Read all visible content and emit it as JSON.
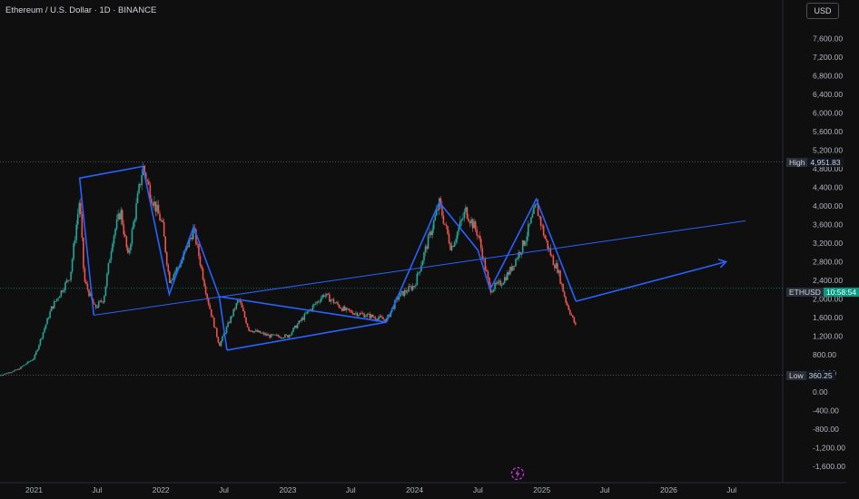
{
  "symbol_title": "Ethereum / U.S. Dollar · 1D · BINANCE",
  "currency_label": "USD",
  "high": {
    "label": "High",
    "value": "4,951.83"
  },
  "low": {
    "label": "Low",
    "value": "360.25"
  },
  "last": {
    "label": "ETHUSD",
    "value": "10:58:54"
  },
  "colors": {
    "background": "#0f0f0f",
    "up": "#26a69a",
    "down": "#ef5350",
    "drawing": "#2962ff",
    "price_tag": "#089981"
  },
  "chart_data": {
    "type": "line",
    "title": "Ethereum / U.S. Dollar · 1D · BINANCE",
    "x_tick_labels": [
      "2021",
      "Jul",
      "2022",
      "Jul",
      "2023",
      "Jul",
      "2024",
      "Jul",
      "2025",
      "Jul",
      "2026",
      "Jul"
    ],
    "y_tick_labels": [
      "7,600.00",
      "7,200.00",
      "6,800.00",
      "6,400.00",
      "6,000.00",
      "5,600.00",
      "5,200.00",
      "4,800.00",
      "4,400.00",
      "4,000.00",
      "3,600.00",
      "3,200.00",
      "2,800.00",
      "2,400.00",
      "2,000.00",
      "1,600.00",
      "1,200.00",
      "800.00",
      "400.00",
      "0.00",
      "-400.00",
      "-800.00",
      "-1,200.00",
      "-1,600.00"
    ],
    "ylim": [
      -1800,
      8000
    ],
    "xlim": [
      "2020-09-25",
      "2026-11-25"
    ],
    "grid": false,
    "price_approx": {
      "name": "ETHUSD",
      "x": [
        "2020-09-25",
        "2020-11-15",
        "2021-01-01",
        "2021-02-20",
        "2021-04-15",
        "2021-05-12",
        "2021-05-25",
        "2021-06-25",
        "2021-07-20",
        "2021-08-15",
        "2021-09-07",
        "2021-09-28",
        "2021-11-10",
        "2021-12-05",
        "2022-01-05",
        "2022-01-25",
        "2022-03-01",
        "2022-04-05",
        "2022-05-15",
        "2022-06-18",
        "2022-08-13",
        "2022-09-10",
        "2022-11-10",
        "2023-01-01",
        "2023-02-20",
        "2023-04-15",
        "2023-06-15",
        "2023-08-15",
        "2023-10-12",
        "2023-11-15",
        "2024-01-01",
        "2024-03-12",
        "2024-04-15",
        "2024-05-27",
        "2024-07-01",
        "2024-08-05",
        "2024-09-06",
        "2024-10-01",
        "2024-11-10",
        "2024-12-16",
        "2025-01-10",
        "2025-02-03",
        "2025-02-15",
        "2025-03-11",
        "2025-04-09"
      ],
      "y": [
        360,
        480,
        730,
        1800,
        2500,
        4150,
        2400,
        1800,
        2000,
        3300,
        3900,
        2900,
        4850,
        4200,
        3600,
        2400,
        2800,
        3500,
        2000,
        1000,
        2000,
        1350,
        1200,
        1200,
        1650,
        2100,
        1750,
        1650,
        1550,
        2050,
        2300,
        4050,
        3100,
        3900,
        3400,
        2200,
        2350,
        2600,
        3200,
        4000,
        3300,
        2800,
        2650,
        1950,
        1400
      ]
    },
    "drawings": [
      {
        "name": "long-trendline",
        "x": [
          "2021-06-22",
          "2026-08-10"
        ],
        "y": [
          1650,
          3680
        ]
      },
      {
        "name": "zigzag-2021-2022",
        "x": [
          "2021-06-22",
          "2021-05-12",
          "2021-11-10",
          "2022-01-25",
          "2022-04-05",
          "2022-06-18",
          "2022-07-10"
        ],
        "y": [
          1650,
          4600,
          4850,
          2100,
          3550,
          2050,
          900
        ]
      },
      {
        "name": "range-2022-2023",
        "x": [
          "2022-07-10",
          "2023-10-12",
          "2022-06-18"
        ],
        "y": [
          900,
          1500,
          2050
        ]
      },
      {
        "name": "rally-2023-2024",
        "x": [
          "2023-10-12",
          "2024-03-12",
          "2024-07-01",
          "2024-08-05",
          "2024-12-16",
          "2025-04-09"
        ],
        "y": [
          1500,
          4080,
          3050,
          2200,
          4150,
          1950
        ]
      },
      {
        "name": "projection-arrow",
        "x": [
          "2025-04-09",
          "2026-06-15"
        ],
        "y": [
          1950,
          2800
        ]
      }
    ],
    "high_line": 4951.83,
    "low_line": 360.25,
    "last_price_line": 2230
  }
}
